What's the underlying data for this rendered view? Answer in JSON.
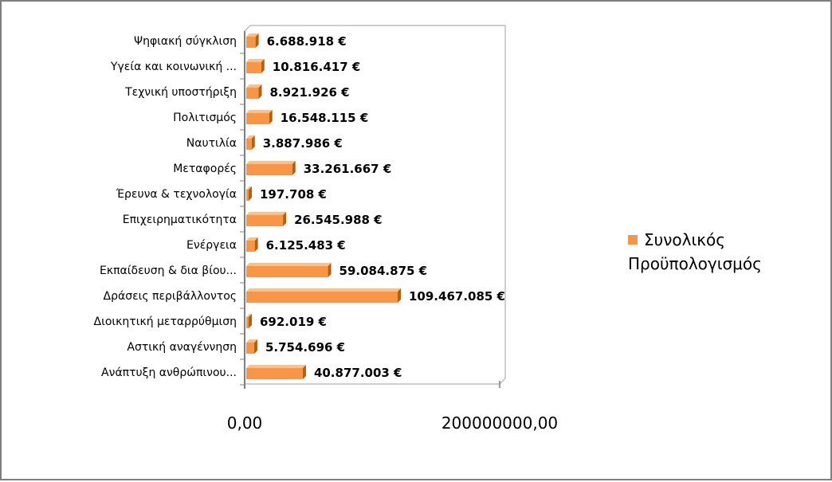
{
  "chart_data": {
    "type": "bar",
    "orientation": "horizontal",
    "categories": [
      "Ψηφιακή σύγκλιση",
      "Υγεία και κοινωνική ...",
      "Τεχνική υποστήριξη",
      "Πολιτισμός",
      "Ναυτιλία",
      "Μεταφορές",
      "Έρευνα & τεχνολογία",
      "Επιχειρηματικότητα",
      "Ενέργεια",
      "Εκπαίδευση & δια βίου...",
      "Δράσεις περιβάλλοντος",
      "Διοικητική μεταρρύθμιση",
      "Αστική αναγέννηση",
      "Ανάπτυξη ανθρώπινου..."
    ],
    "series": [
      {
        "name": "Συνολικός Προϋπολογισμός",
        "values": [
          6688918,
          10816417,
          8921926,
          16548115,
          3887986,
          33261667,
          197708,
          26545988,
          6125483,
          59084875,
          109467085,
          692019,
          5754696,
          40877003
        ]
      }
    ],
    "data_labels": [
      "6.688.918 €",
      "10.816.417 €",
      "8.921.926 €",
      "16.548.115 €",
      "3.887.986 €",
      "33.261.667 €",
      "197.708 €",
      "26.545.988 €",
      "6.125.483 €",
      "59.084.875 €",
      "109.467.085 €",
      "692.019 €",
      "5.754.696 €",
      "40.877.003 €"
    ],
    "x_tick_labels": [
      "0,00",
      "200000000,00"
    ],
    "xlim": [
      0,
      200000000
    ],
    "grid": false,
    "legend_position": "right",
    "bar_color": "#f79646",
    "bar_color_dark": "#b6600f",
    "title": "",
    "xlabel": "",
    "ylabel": ""
  },
  "legend": {
    "label_line1": "Συνολικός",
    "label_line2": "Προϋπολογισμός"
  }
}
